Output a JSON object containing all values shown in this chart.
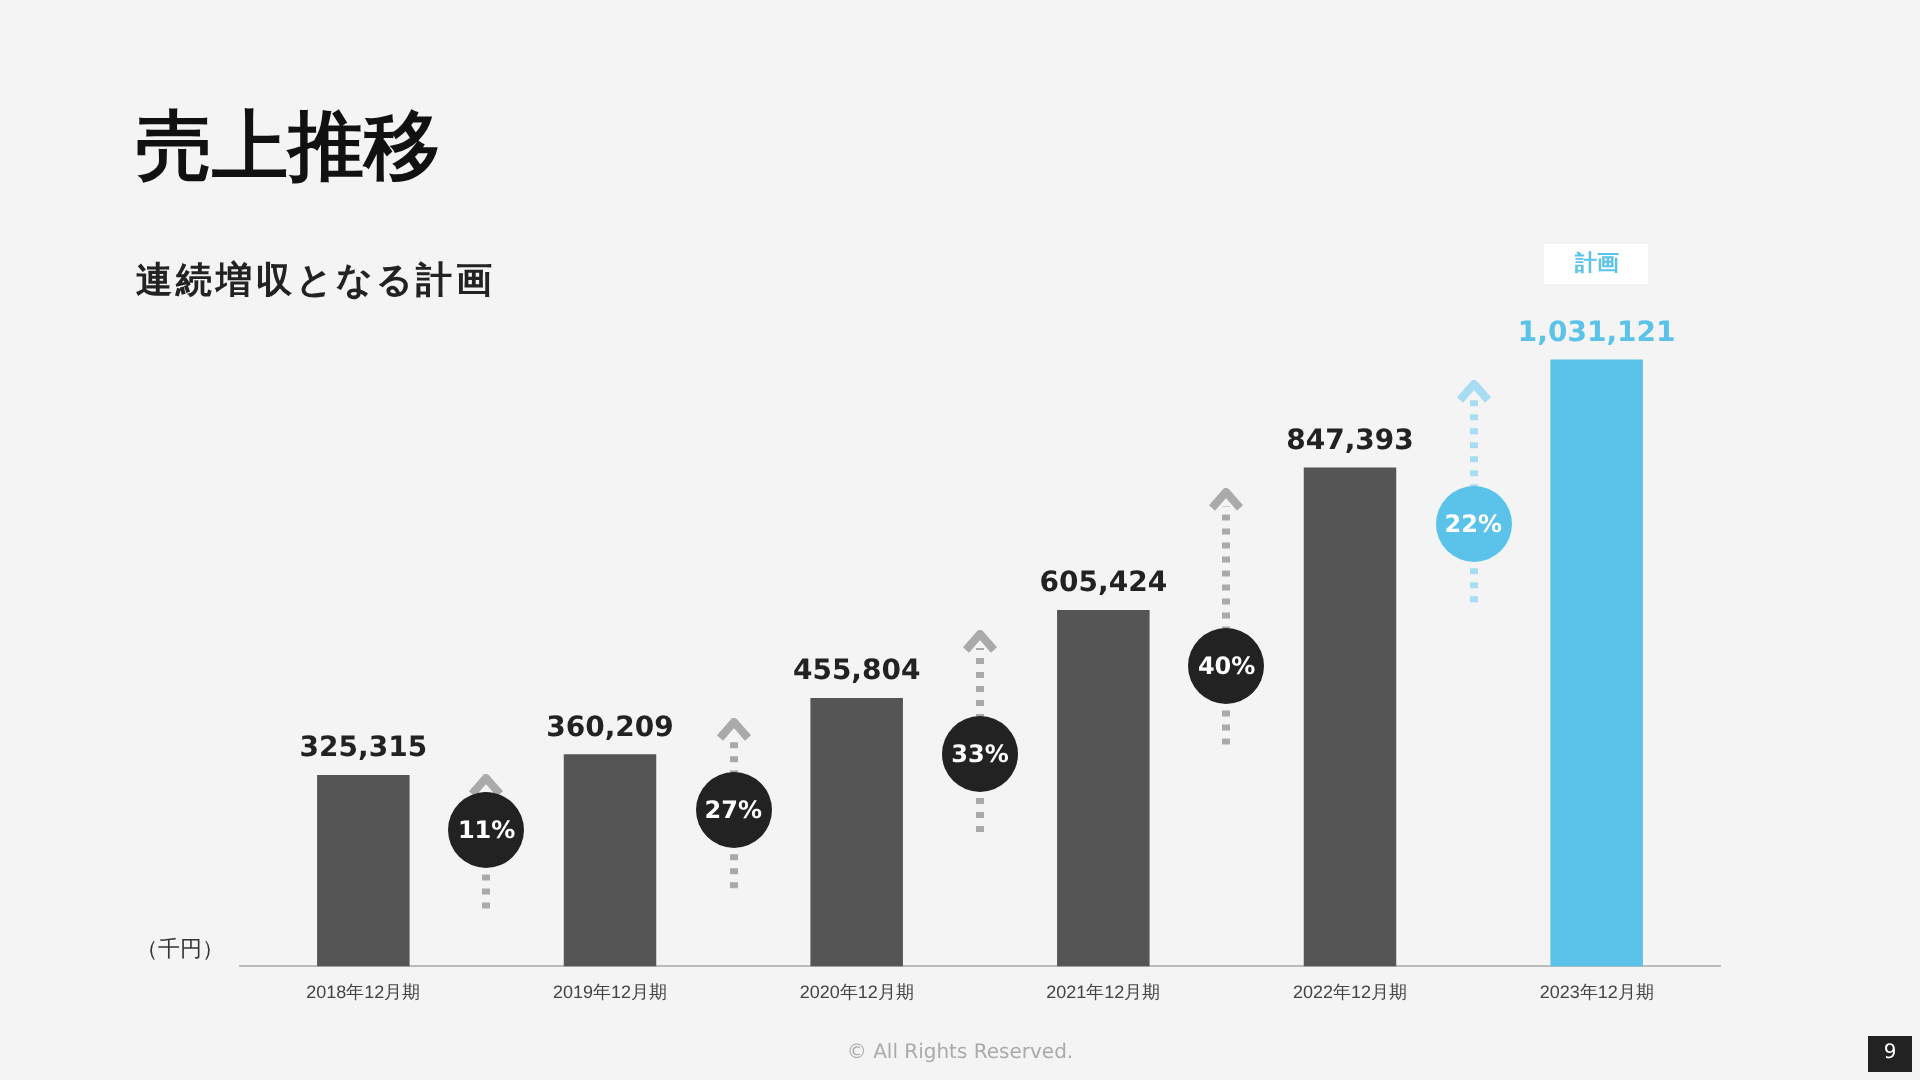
{
  "chart_data": {
    "type": "bar",
    "title": "売上推移",
    "subtitle": "連続増収となる計画",
    "ylabel": "（千円）",
    "categories": [
      "2018年12月期",
      "2019年12月期",
      "2020年12月期",
      "2021年12月期",
      "2022年12月期",
      "2023年12月期"
    ],
    "colors": [
      "#555555",
      "#555555",
      "#555555",
      "#555555",
      "#555555",
      "#5bc3ea"
    ],
    "values": [
      325315,
      360209,
      455804,
      605424,
      847393,
      1031121
    ],
    "value_labels": [
      "325,315",
      "360,209",
      "455,804",
      "605,424",
      "847,393",
      "1,031,121"
    ],
    "annotations": [
      "11%",
      "27%",
      "33%",
      "40%",
      "22%",
      "計画",
      "© All Rights Reserved.",
      "9"
    ],
    "grid": false,
    "legend": false
  }
}
